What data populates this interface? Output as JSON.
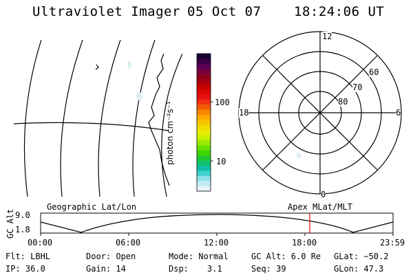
{
  "header": {
    "instrument": "Ultraviolet Imager",
    "date": "05 Oct 07",
    "time": "18:24:06 UT"
  },
  "colorbar": {
    "unit_label": "photon cm⁻²s⁻¹",
    "tick_labels": [
      "100",
      "10"
    ],
    "colors": [
      "#1a0030",
      "#3a0048",
      "#5a0055",
      "#780040",
      "#8e0020",
      "#a80010",
      "#c40000",
      "#dc0808",
      "#e81010",
      "#f03010",
      "#f45a00",
      "#f88800",
      "#fca800",
      "#f8c400",
      "#f4dc00",
      "#e8ee00",
      "#c8f000",
      "#98ea00",
      "#6ae000",
      "#40d400",
      "#20c830",
      "#10c070",
      "#10c0a8",
      "#40d0d0",
      "#90e0e8",
      "#c0ecf4",
      "#e4f4f8"
    ]
  },
  "polar": {
    "mlt_labels": {
      "top": "12",
      "left": "18",
      "right": "6",
      "bottom": "0"
    },
    "lat_labels": [
      "60",
      "70",
      "80"
    ]
  },
  "timeline": {
    "left_label": "Geographic Lat/Lon",
    "right_label": "Apex MLat/MLT",
    "axis_label": "GC Alt",
    "y_ticks": [
      "9.0",
      "1.8"
    ],
    "x_ticks": [
      "00:00",
      "06:00",
      "12:00",
      "18:00",
      "23:59"
    ],
    "marker_color": "#e00000"
  },
  "info": {
    "filter": "Flt: LBHL",
    "door": "Door: Open",
    "mode": "Mode: Normal",
    "gc_alt": "GC Alt: 6.0 Re",
    "glat": "GLat: −50.2",
    "ip": "IP: 36.0",
    "gain": "Gain: 14",
    "dsp_label": "Dsp:",
    "dsp_value": "3.1",
    "seq": "Seq: 39",
    "glon": "GLon:  47.3"
  }
}
